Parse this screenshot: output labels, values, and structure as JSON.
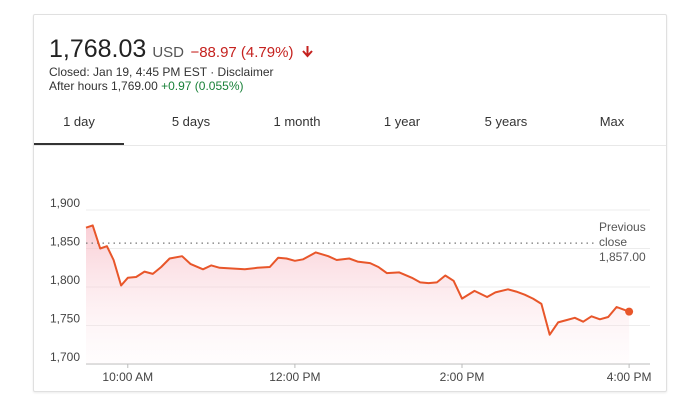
{
  "header": {
    "price": "1,768.03",
    "currency": "USD",
    "change": "−88.97 (4.79%)",
    "closed_text": "Closed: Jan 19, 4:45 PM EST · Disclaimer",
    "after_hours_label": "After hours 1,769.00",
    "after_hours_change": "+0.97 (0.055%)"
  },
  "tabs": [
    {
      "label": "1 day",
      "active": true
    },
    {
      "label": "5 days",
      "active": false
    },
    {
      "label": "1 month",
      "active": false
    },
    {
      "label": "1 year",
      "active": false
    },
    {
      "label": "5 years",
      "active": false
    },
    {
      "label": "Max",
      "active": false
    }
  ],
  "colors": {
    "line": "#e8562a",
    "negative": "#c5221f",
    "positive": "#188038"
  },
  "chart_data": {
    "type": "area",
    "x_unit": "hours",
    "xlim": [
      9.5,
      16.25
    ],
    "ylim": [
      1700,
      1900
    ],
    "y_ticks": [
      {
        "value": 1700,
        "label": "1,700"
      },
      {
        "value": 1750,
        "label": "1,750"
      },
      {
        "value": 1800,
        "label": "1,800"
      },
      {
        "value": 1850,
        "label": "1,850"
      },
      {
        "value": 1900,
        "label": "1,900"
      }
    ],
    "x_ticks": [
      {
        "value": 10,
        "label": "10:00 AM"
      },
      {
        "value": 12,
        "label": "12:00 PM"
      },
      {
        "value": 14,
        "label": "2:00 PM"
      },
      {
        "value": 16,
        "label": "4:00 PM"
      }
    ],
    "previous_close": {
      "value": 1857.0,
      "label_lines": [
        "Previous",
        "close",
        "1,857.00"
      ]
    },
    "grid": true,
    "series": [
      {
        "x": [
          9.5,
          9.58,
          9.67,
          9.75,
          9.83,
          9.92,
          10.0,
          10.1,
          10.2,
          10.3,
          10.4,
          10.5,
          10.65,
          10.75,
          10.9,
          11.0,
          11.1,
          11.25,
          11.4,
          11.55,
          11.7,
          11.8,
          11.9,
          12.0,
          12.1,
          12.25,
          12.4,
          12.5,
          12.65,
          12.75,
          12.9,
          13.0,
          13.1,
          13.25,
          13.4,
          13.5,
          13.6,
          13.7,
          13.8,
          13.9,
          14.0,
          14.15,
          14.3,
          14.4,
          14.55,
          14.65,
          14.75,
          14.85,
          14.95,
          15.05,
          15.15,
          15.25,
          15.35,
          15.45,
          15.55,
          15.65,
          15.75,
          15.85,
          15.95,
          16.0
        ],
        "y": [
          1877,
          1880,
          1850,
          1853,
          1835,
          1802,
          1812,
          1813,
          1820,
          1817,
          1826,
          1837,
          1840,
          1830,
          1823,
          1828,
          1825,
          1824,
          1823,
          1825,
          1826,
          1838,
          1837,
          1834,
          1836,
          1845,
          1840,
          1835,
          1837,
          1833,
          1831,
          1826,
          1818,
          1819,
          1812,
          1806,
          1805,
          1806,
          1815,
          1808,
          1785,
          1795,
          1787,
          1793,
          1797,
          1794,
          1790,
          1785,
          1778,
          1738,
          1754,
          1757,
          1760,
          1755,
          1762,
          1758,
          1761,
          1774,
          1770,
          1768
        ],
        "last_point": {
          "x": 16.0,
          "y": 1768
        }
      }
    ]
  }
}
